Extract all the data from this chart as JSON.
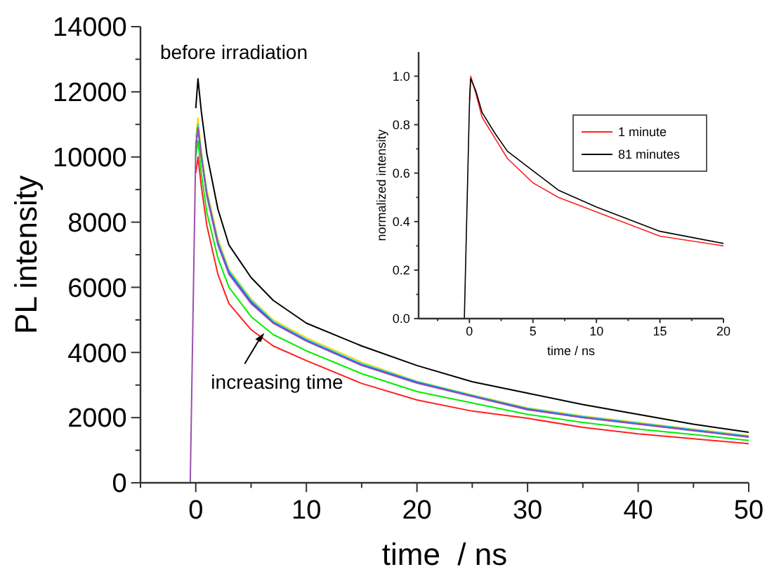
{
  "chart_data": [
    {
      "type": "line",
      "xlabel": "time  / ns",
      "ylabel": "PL intensity",
      "xlim": [
        -5,
        50
      ],
      "ylim": [
        0,
        14000
      ],
      "xticks": [
        {
          "value": -5,
          "label": null
        },
        0,
        {
          "value": 5,
          "label": null
        },
        10,
        {
          "value": 15,
          "label": null
        },
        20,
        {
          "value": 25,
          "label": null
        },
        30,
        {
          "value": 35,
          "label": null
        },
        40,
        {
          "value": 45,
          "label": null
        },
        50
      ],
      "yticks": [
        0,
        {
          "value": 1000,
          "label": null
        },
        2000,
        {
          "value": 3000,
          "label": null
        },
        4000,
        {
          "value": 5000,
          "label": null
        },
        6000,
        {
          "value": 7000,
          "label": null
        },
        8000,
        {
          "value": 9000,
          "label": null
        },
        10000,
        {
          "value": 11000,
          "label": null
        },
        12000,
        {
          "value": 13000,
          "label": null
        },
        14000
      ],
      "x": [
        -5,
        -0.5,
        0,
        0.2,
        0.5,
        1,
        2,
        3,
        5,
        7,
        10,
        15,
        20,
        25,
        30,
        35,
        40,
        45,
        50
      ],
      "series": [
        {
          "color": "#000000",
          "values": [
            null,
            null,
            11500,
            12400,
            11400,
            10100,
            8400,
            7300,
            6300,
            5600,
            4900,
            4200,
            3600,
            3100,
            2750,
            2400,
            2100,
            1800,
            1550
          ]
        },
        {
          "color": "#ffd700",
          "values": [
            null,
            null,
            10600,
            11200,
            10200,
            9000,
            7500,
            6550,
            5650,
            5000,
            4450,
            3700,
            3120,
            2700,
            2300,
            2050,
            1850,
            1650,
            1450
          ]
        },
        {
          "color": "#00e5ee",
          "values": [
            null,
            null,
            10400,
            11000,
            10100,
            8900,
            7400,
            6500,
            5600,
            4950,
            4400,
            3650,
            3100,
            2680,
            2280,
            2030,
            1830,
            1630,
            1430
          ]
        },
        {
          "color": "#3050ff",
          "values": [
            null,
            null,
            10300,
            10900,
            10000,
            8850,
            7350,
            6450,
            5550,
            4920,
            4370,
            3620,
            3080,
            2660,
            2260,
            2010,
            1810,
            1610,
            1410
          ]
        },
        {
          "color": "#00ee00",
          "values": [
            null,
            null,
            10000,
            10500,
            9500,
            8300,
            6900,
            6000,
            5100,
            4550,
            4050,
            3350,
            2800,
            2450,
            2100,
            1850,
            1650,
            1480,
            1300
          ]
        },
        {
          "color": "#ff2020",
          "values": [
            null,
            null,
            9500,
            10000,
            9100,
            7900,
            6400,
            5500,
            4700,
            4200,
            3750,
            3050,
            2540,
            2200,
            1980,
            1700,
            1500,
            1350,
            1200
          ]
        },
        {
          "color": "#9b4fb0",
          "values": [
            0,
            0,
            10300,
            10900,
            10000,
            8800,
            7300,
            6400,
            5500,
            4900,
            4350,
            3600,
            3060,
            2650,
            2240,
            2000,
            1800,
            1600,
            1400
          ]
        }
      ],
      "annotations": [
        {
          "text": "before irradiation",
          "x": 0.2,
          "y": 12400
        },
        {
          "text": "increasing time",
          "x": 6.2,
          "y": 4600
        }
      ]
    },
    {
      "type": "line",
      "xlabel": "time / ns",
      "ylabel": "normalized intensity",
      "xlim": [
        -4,
        20
      ],
      "ylim": [
        0,
        1.1
      ],
      "legend": "top right",
      "xticks": [
        {
          "value": -2.5,
          "label": null
        },
        0,
        {
          "value": 2.5,
          "label": null
        },
        5,
        {
          "value": 7.5,
          "label": null
        },
        10,
        {
          "value": 12.5,
          "label": null
        },
        15,
        {
          "value": 17.5,
          "label": null
        },
        20
      ],
      "yticks": [
        {
          "value": 0,
          "label": "0.0"
        },
        {
          "value": 0.1,
          "label": null
        },
        0.2,
        {
          "value": 0.3,
          "label": null
        },
        0.4,
        {
          "value": 0.5,
          "label": null
        },
        0.6,
        {
          "value": 0.7,
          "label": null
        },
        0.8,
        {
          "value": 0.9,
          "label": null
        },
        {
          "value": 1,
          "label": "1.0"
        }
      ],
      "x": [
        -4,
        -0.4,
        0,
        0.1,
        0.5,
        1,
        2,
        3,
        5,
        7,
        10,
        15,
        20
      ],
      "series": [
        {
          "name": "1 minute",
          "color": "#ff2020",
          "values": [
            null,
            null,
            0.9,
            1.0,
            0.93,
            0.83,
            0.745,
            0.66,
            0.56,
            0.5,
            0.44,
            0.34,
            0.3
          ]
        },
        {
          "name": "81 minutes",
          "color": "#000000",
          "values": [
            0,
            0,
            0.88,
            0.99,
            0.94,
            0.85,
            0.765,
            0.69,
            0.61,
            0.53,
            0.46,
            0.36,
            0.31
          ]
        }
      ]
    }
  ]
}
